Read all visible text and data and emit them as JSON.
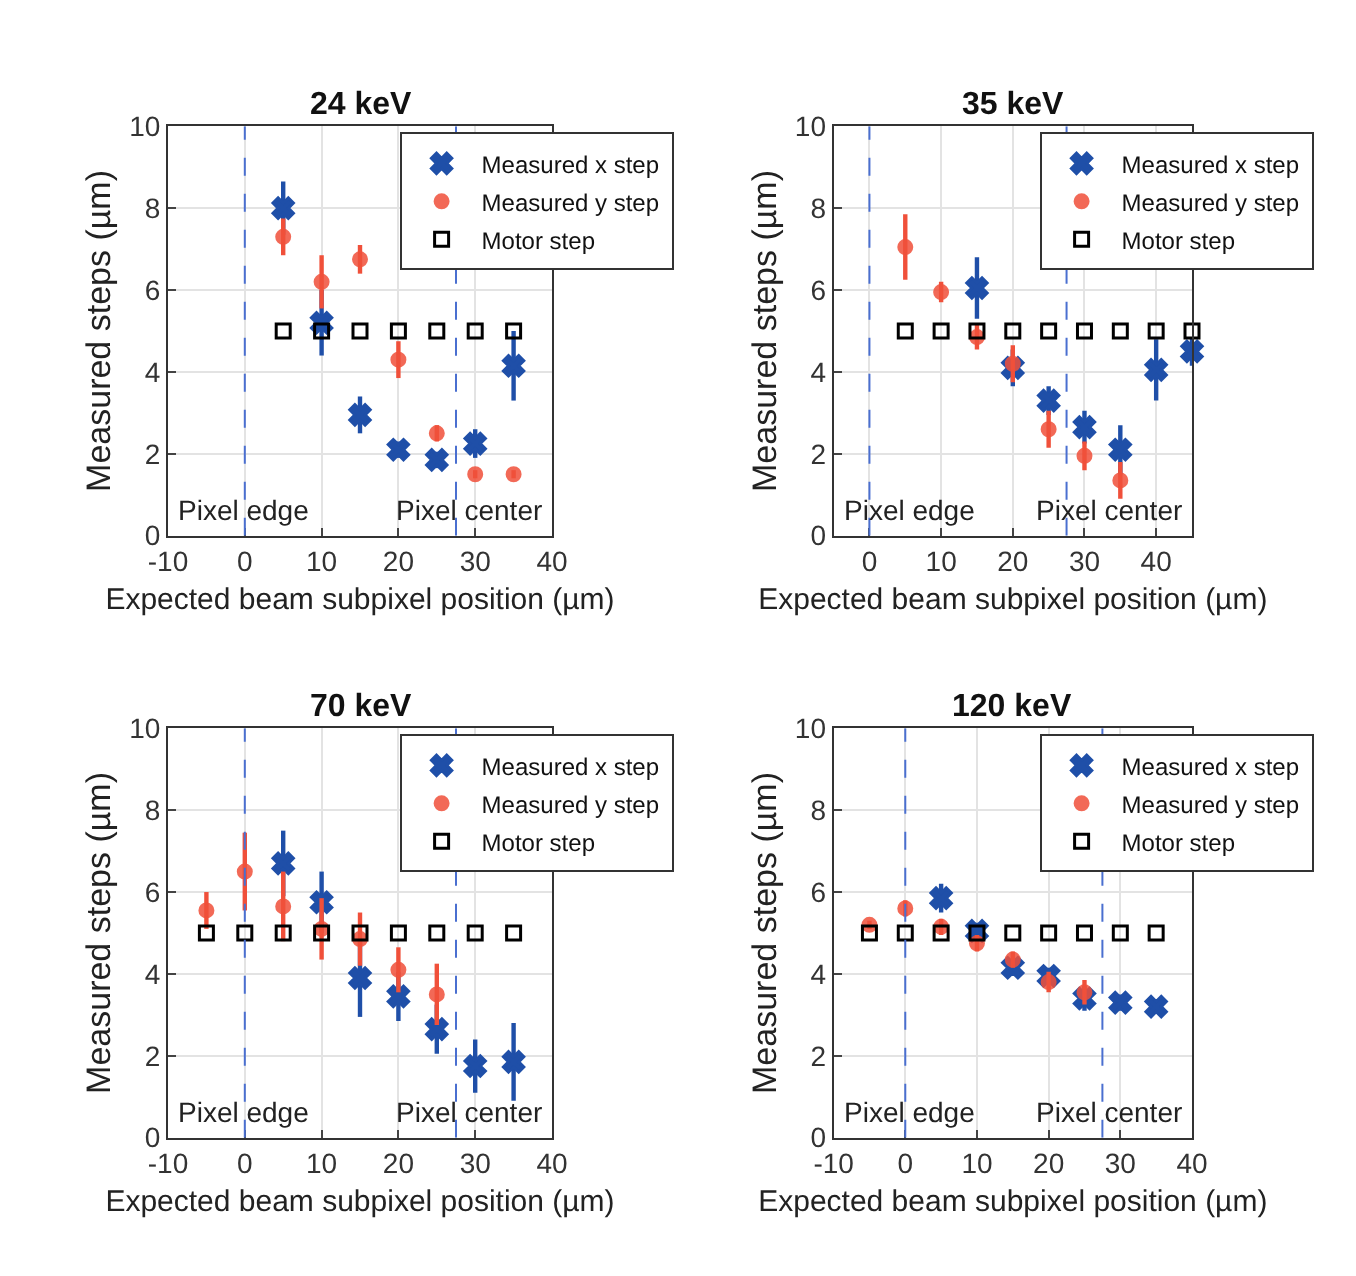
{
  "chart_data": [
    {
      "type": "scatter",
      "title": "24 keV",
      "xlabel": "Expected beam subpixel position (µm)",
      "ylabel": "Measured steps (µm)",
      "xlim": [
        -10,
        40
      ],
      "xticks": [
        -10,
        0,
        10,
        20,
        30,
        40
      ],
      "ylim": [
        0,
        10
      ],
      "yticks": [
        0,
        2,
        4,
        6,
        8,
        10
      ],
      "grid": true,
      "legend": "top right",
      "series": [
        {
          "name": "Measured x step",
          "color": "#1f4fa8",
          "marker": "cross",
          "x": [
            5,
            10,
            15,
            20,
            25,
            30,
            35
          ],
          "values": [
            8.0,
            5.2,
            2.95,
            2.1,
            1.85,
            2.25,
            4.15
          ],
          "errors": [
            0.65,
            0.8,
            0.45,
            0.2,
            0.2,
            0.35,
            0.85
          ]
        },
        {
          "name": "Measured y step",
          "color": "#f0503a",
          "marker": "circle",
          "x": [
            5,
            10,
            15,
            20,
            25,
            30,
            35
          ],
          "values": [
            7.3,
            6.2,
            6.75,
            4.3,
            2.5,
            1.5,
            1.5
          ],
          "errors": [
            0.45,
            0.65,
            0.35,
            0.45,
            0.2,
            0.1,
            0.1
          ]
        },
        {
          "name": "Motor step",
          "color": "#000000",
          "marker": "square",
          "x": [
            5,
            10,
            15,
            20,
            25,
            30,
            35
          ],
          "values": [
            5,
            5,
            5,
            5,
            5,
            5,
            5
          ]
        }
      ],
      "ref_lines": [
        {
          "axis": "x",
          "value": 0,
          "color": "#4a6fd0",
          "line_style": "dashed"
        },
        {
          "axis": "x",
          "value": 27.5,
          "color": "#4a6fd0",
          "line_style": "dashed"
        }
      ],
      "annotations": [
        "Pixel edge",
        "Pixel center"
      ]
    },
    {
      "type": "scatter",
      "title": "35 keV",
      "xlabel": "Expected beam subpixel position (µm)",
      "ylabel": "Measured steps (µm)",
      "xlim": [
        -5,
        45
      ],
      "xticks": [
        0,
        10,
        20,
        30,
        40
      ],
      "ylim": [
        0,
        10
      ],
      "yticks": [
        0,
        2,
        4,
        6,
        8,
        10
      ],
      "grid": true,
      "legend": "top right",
      "series": [
        {
          "name": "Measured x step",
          "color": "#1f4fa8",
          "marker": "cross",
          "x": [
            15,
            20,
            25,
            30,
            35,
            40,
            45
          ],
          "values": [
            6.05,
            4.1,
            3.3,
            2.65,
            2.1,
            4.05,
            4.5
          ],
          "errors": [
            0.75,
            0.45,
            0.35,
            0.4,
            0.6,
            0.75,
            0.35
          ]
        },
        {
          "name": "Measured y step",
          "color": "#f0503a",
          "marker": "circle",
          "x": [
            5,
            10,
            15,
            20,
            25,
            30,
            35
          ],
          "values": [
            7.05,
            5.95,
            4.85,
            4.2,
            2.6,
            1.95,
            1.35
          ],
          "errors": [
            0.8,
            0.25,
            0.3,
            0.45,
            0.45,
            0.35,
            0.45
          ]
        },
        {
          "name": "Motor step",
          "color": "#000000",
          "marker": "square",
          "x": [
            5,
            10,
            15,
            20,
            25,
            30,
            35,
            40,
            45
          ],
          "values": [
            5,
            5,
            5,
            5,
            5,
            5,
            5,
            5,
            5
          ]
        }
      ],
      "ref_lines": [
        {
          "axis": "x",
          "value": 0,
          "color": "#4a6fd0",
          "line_style": "dashed"
        },
        {
          "axis": "x",
          "value": 27.5,
          "color": "#4a6fd0",
          "line_style": "dashed"
        }
      ],
      "annotations": [
        "Pixel edge",
        "Pixel center"
      ]
    },
    {
      "type": "scatter",
      "title": "70 keV",
      "xlabel": "Expected beam subpixel position (µm)",
      "ylabel": "Measured steps (µm)",
      "xlim": [
        -10,
        40
      ],
      "xticks": [
        -10,
        0,
        10,
        20,
        30,
        40
      ],
      "ylim": [
        0,
        10
      ],
      "yticks": [
        0,
        2,
        4,
        6,
        8,
        10
      ],
      "grid": true,
      "legend": "top right",
      "series": [
        {
          "name": "Measured x step",
          "color": "#1f4fa8",
          "marker": "cross",
          "x": [
            5,
            10,
            15,
            20,
            25,
            30,
            35
          ],
          "values": [
            6.7,
            5.75,
            3.9,
            3.45,
            2.65,
            1.75,
            1.85
          ],
          "errors": [
            0.8,
            0.75,
            0.95,
            0.6,
            0.6,
            0.65,
            0.95
          ]
        },
        {
          "name": "Measured y step",
          "color": "#f0503a",
          "marker": "circle",
          "x": [
            -5,
            0,
            5,
            10,
            15,
            20,
            25
          ],
          "values": [
            5.55,
            6.5,
            5.65,
            5.1,
            4.85,
            4.1,
            3.5
          ],
          "errors": [
            0.45,
            0.95,
            0.85,
            0.75,
            0.65,
            0.55,
            0.75
          ]
        },
        {
          "name": "Motor step",
          "color": "#000000",
          "marker": "square",
          "x": [
            -5,
            0,
            5,
            10,
            15,
            20,
            25,
            30,
            35
          ],
          "values": [
            5,
            5,
            5,
            5,
            5,
            5,
            5,
            5,
            5
          ]
        }
      ],
      "ref_lines": [
        {
          "axis": "x",
          "value": 0,
          "color": "#4a6fd0",
          "line_style": "dashed"
        },
        {
          "axis": "x",
          "value": 27.5,
          "color": "#4a6fd0",
          "line_style": "dashed"
        }
      ],
      "annotations": [
        "Pixel edge",
        "Pixel center"
      ]
    },
    {
      "type": "scatter",
      "title": "120 keV",
      "xlabel": "Expected beam subpixel position (µm)",
      "ylabel": "Measured steps (µm)",
      "xlim": [
        -10,
        40
      ],
      "xticks": [
        -10,
        0,
        10,
        20,
        30,
        40
      ],
      "ylim": [
        0,
        10
      ],
      "yticks": [
        0,
        2,
        4,
        6,
        8,
        10
      ],
      "grid": true,
      "legend": "top right",
      "series": [
        {
          "name": "Measured x step",
          "color": "#1f4fa8",
          "marker": "cross",
          "x": [
            5,
            10,
            15,
            20,
            25,
            30,
            35
          ],
          "values": [
            5.85,
            5.05,
            4.15,
            3.95,
            3.4,
            3.3,
            3.2
          ],
          "errors": [
            0.35,
            0.2,
            0.2,
            0.2,
            0.3,
            0.2,
            0.15
          ]
        },
        {
          "name": "Measured y step",
          "color": "#f0503a",
          "marker": "circle",
          "x": [
            -5,
            0,
            5,
            10,
            15,
            20,
            25
          ],
          "values": [
            5.2,
            5.6,
            5.15,
            4.75,
            4.35,
            3.8,
            3.55
          ],
          "errors": [
            0.1,
            0.2,
            0.2,
            0.2,
            0.2,
            0.25,
            0.3
          ]
        },
        {
          "name": "Motor step",
          "color": "#000000",
          "marker": "square",
          "x": [
            -5,
            0,
            5,
            10,
            15,
            20,
            25,
            30,
            35
          ],
          "values": [
            5,
            5,
            5,
            5,
            5,
            5,
            5,
            5,
            5
          ]
        }
      ],
      "ref_lines": [
        {
          "axis": "x",
          "value": 0,
          "color": "#4a6fd0",
          "line_style": "dashed"
        },
        {
          "axis": "x",
          "value": 27.5,
          "color": "#4a6fd0",
          "line_style": "dashed"
        }
      ],
      "annotations": [
        "Pixel edge",
        "Pixel center"
      ]
    }
  ]
}
